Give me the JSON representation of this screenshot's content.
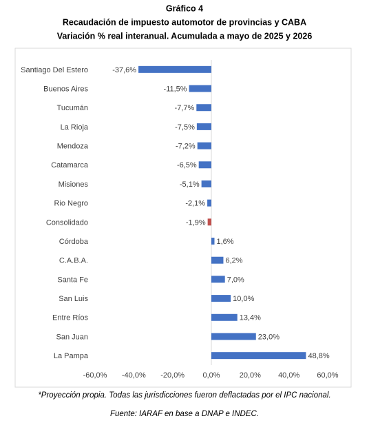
{
  "chart_data": {
    "type": "barh",
    "title": "Gráfico 4",
    "subtitle": [
      "Recaudación de impuesto automotor de provincias y CABA",
      "Variación % real interanual. Acumulada a mayo de 2025 y 2026"
    ],
    "categories": [
      "Santiago Del Estero",
      "Buenos Aires",
      "Tucumán",
      "La Rioja",
      "Mendoza",
      "Catamarca",
      "Misiones",
      "Rio Negro",
      "Consolidado",
      "Córdoba",
      "C.A.B.A.",
      "Santa Fe",
      "San Luis",
      "Entre Ríos",
      "San Juan",
      "La Pampa"
    ],
    "values": [
      -37.6,
      -11.5,
      -7.7,
      -7.5,
      -7.2,
      -6.5,
      -5.1,
      -2.1,
      -1.9,
      1.6,
      6.2,
      7.0,
      10.0,
      13.4,
      23.0,
      48.8
    ],
    "value_labels": [
      "-37,6%",
      "-11,5%",
      "-7,7%",
      "-7,5%",
      "-7,2%",
      "-6,5%",
      "-5,1%",
      "-2,1%",
      "-1,9%",
      "1,6%",
      "6,2%",
      "7,0%",
      "10,0%",
      "13,4%",
      "23,0%",
      "48,8%"
    ],
    "colors": [
      "#4472c4",
      "#4472c4",
      "#4472c4",
      "#4472c4",
      "#4472c4",
      "#4472c4",
      "#4472c4",
      "#4472c4",
      "#c0504d",
      "#4472c4",
      "#4472c4",
      "#4472c4",
      "#4472c4",
      "#4472c4",
      "#4472c4",
      "#4472c4"
    ],
    "xlim": [
      -60,
      60
    ],
    "xticks": [
      {
        "value": -60,
        "label": "-60,0%"
      },
      {
        "value": -40,
        "label": "-40,0%"
      },
      {
        "value": -20,
        "label": "-20,0%"
      },
      {
        "value": 0,
        "label": "0,0%"
      },
      {
        "value": 20,
        "label": "20,0%"
      },
      {
        "value": 40,
        "label": "40,0%"
      },
      {
        "value": 60,
        "label": "60,0%"
      }
    ],
    "notes": [
      "*Proyección propia. Todas las jurisdicciones fueron deflactadas por el IPC nacional.",
      "Fuente: IARAF en base a DNAP e INDEC."
    ]
  }
}
